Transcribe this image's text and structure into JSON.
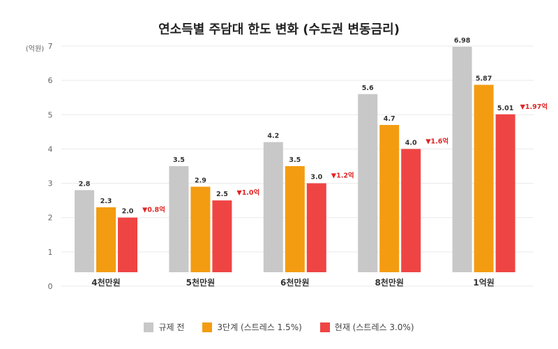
{
  "chart_data": {
    "type": "bar",
    "title": "연소득별 주담대 한도 변화 (수도권 변동금리)",
    "y_unit": "(억원)",
    "ylim": [
      0,
      7
    ],
    "yticks": [
      0,
      1,
      2,
      3,
      4,
      5,
      6,
      7
    ],
    "grid": true,
    "legend_position": "bottom-center",
    "categories": [
      "4천만원",
      "5천만원",
      "6천만원",
      "8천만원",
      "1억원"
    ],
    "series": [
      {
        "name": "규제 전",
        "color": "#c8c8c8",
        "values": [
          2.8,
          3.5,
          4.2,
          5.6,
          6.98
        ],
        "labels": [
          "2.8",
          "3.5",
          "4.2",
          "5.6",
          "6.98"
        ]
      },
      {
        "name": "3단계 (스트레스 1.5%)",
        "color": "#f39c12",
        "values": [
          2.3,
          2.9,
          3.5,
          4.7,
          5.87
        ],
        "labels": [
          "2.3",
          "2.9",
          "3.5",
          "4.7",
          "5.87"
        ]
      },
      {
        "name": "현재 (스트레스 3.0%)",
        "color": "#ef4444",
        "values": [
          2.0,
          2.5,
          3.0,
          4.0,
          5.01
        ],
        "labels": [
          "2.0",
          "2.5",
          "3.0",
          "4.0",
          "5.01"
        ]
      }
    ],
    "annotations": [
      "▼0.8억",
      "▼1.0억",
      "▼1.2억",
      "▼1.6억",
      "▼1.97억"
    ],
    "annotation_color": "#e02424"
  }
}
